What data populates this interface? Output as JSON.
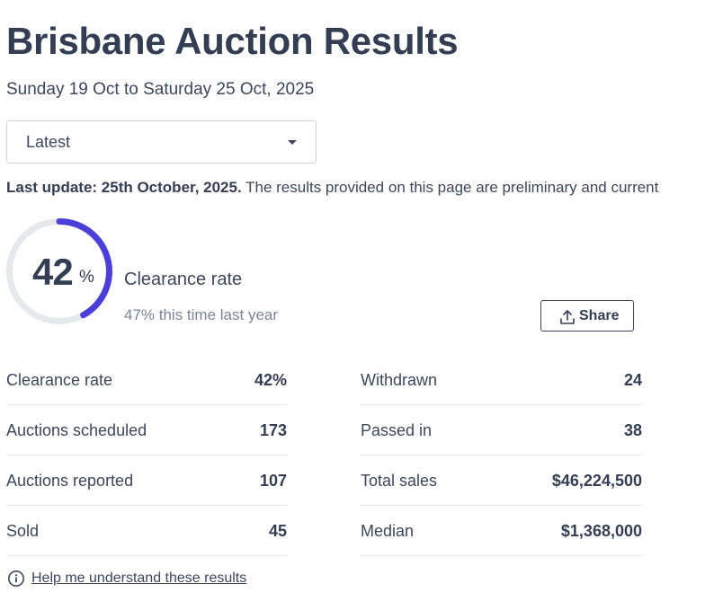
{
  "header": {
    "title": "Brisbane Auction Results",
    "date_range": "Sunday 19 Oct to Saturday 25 Oct, 2025"
  },
  "period_select": {
    "selected": "Latest"
  },
  "update": {
    "bold": "Last update: 25th October, 2025.",
    "text": " The results provided on this page are preliminary and current"
  },
  "clearance": {
    "value": "42",
    "unit": "%",
    "fraction": 0.42,
    "label": "Clearance rate",
    "last_year": "47% this time last year",
    "ring_color": "#4c3fd8",
    "track_color": "#e6e8ec"
  },
  "share": {
    "label": "Share",
    "icon": "share-upload-icon"
  },
  "stats_left": [
    {
      "label": "Clearance rate",
      "value": "42%"
    },
    {
      "label": "Auctions scheduled",
      "value": "173"
    },
    {
      "label": "Auctions reported",
      "value": "107"
    },
    {
      "label": "Sold",
      "value": "45"
    }
  ],
  "stats_right": [
    {
      "label": "Withdrawn",
      "value": "24"
    },
    {
      "label": "Passed in",
      "value": "38"
    },
    {
      "label": "Total sales",
      "value": "$46,224,500"
    },
    {
      "label": "Median",
      "value": "$1,368,000"
    }
  ],
  "help": {
    "label": "Help me understand these results",
    "icon": "info-icon"
  }
}
